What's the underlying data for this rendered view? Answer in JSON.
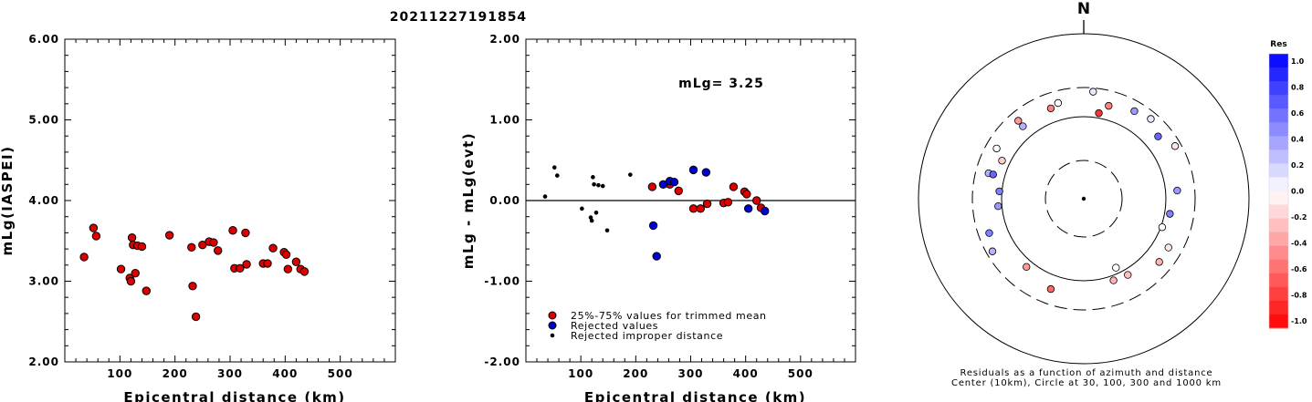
{
  "title": "20211227191854",
  "chart_data": [
    {
      "type": "scatter",
      "xlabel": "Epicentral distance (km)",
      "ylabel": "mLg(IASPEI)",
      "xlim": [
        0,
        600
      ],
      "ylim": [
        2.0,
        6.0
      ],
      "xticks": [
        "100",
        "200",
        "300",
        "400",
        "500"
      ],
      "yticks": [
        "2.00",
        "3.00",
        "4.00",
        "5.00",
        "6.00"
      ],
      "marker_color": "#dd0000",
      "points": [
        [
          35,
          3.3
        ],
        [
          52,
          3.66
        ],
        [
          57,
          3.56
        ],
        [
          102,
          3.15
        ],
        [
          118,
          3.04
        ],
        [
          120,
          3.0
        ],
        [
          122,
          3.54
        ],
        [
          124,
          3.45
        ],
        [
          128,
          3.1
        ],
        [
          132,
          3.44
        ],
        [
          140,
          3.43
        ],
        [
          148,
          2.88
        ],
        [
          190,
          3.57
        ],
        [
          230,
          3.42
        ],
        [
          232,
          2.94
        ],
        [
          238,
          2.56
        ],
        [
          250,
          3.45
        ],
        [
          262,
          3.49
        ],
        [
          270,
          3.48
        ],
        [
          278,
          3.38
        ],
        [
          305,
          3.63
        ],
        [
          308,
          3.16
        ],
        [
          318,
          3.16
        ],
        [
          328,
          3.6
        ],
        [
          330,
          3.21
        ],
        [
          360,
          3.22
        ],
        [
          368,
          3.22
        ],
        [
          378,
          3.41
        ],
        [
          398,
          3.36
        ],
        [
          402,
          3.33
        ],
        [
          405,
          3.15
        ],
        [
          420,
          3.24
        ],
        [
          428,
          3.15
        ],
        [
          435,
          3.12
        ]
      ]
    },
    {
      "type": "scatter",
      "xlabel": "Epicentral distance (km)",
      "ylabel": "mLg - mLg(evt)",
      "xlim": [
        0,
        600
      ],
      "ylim": [
        -2.0,
        2.0
      ],
      "xticks": [
        "100",
        "200",
        "300",
        "400",
        "500"
      ],
      "yticks": [
        "-2.00",
        "-1.00",
        "0.00",
        "1.00",
        "2.00"
      ],
      "annotation": "mLg= 3.25",
      "reference_line": 0,
      "legend": {
        "position": "bottom-left",
        "entries": [
          {
            "label": "25%-75% values for trimmed mean",
            "color": "#dd0000"
          },
          {
            "label": "Rejected values",
            "color": "#0000cc"
          },
          {
            "label": "Rejected improper distance",
            "color": "#000000"
          }
        ]
      },
      "series": [
        {
          "name": "25%-75% values for trimmed mean",
          "points": [
            [
              230,
              0.17
            ],
            [
              262,
              0.2
            ],
            [
              278,
              0.12
            ],
            [
              305,
              -0.1
            ],
            [
              318,
              -0.1
            ],
            [
              330,
              -0.04
            ],
            [
              360,
              -0.03
            ],
            [
              368,
              -0.02
            ],
            [
              378,
              0.17
            ],
            [
              398,
              0.11
            ],
            [
              402,
              0.08
            ],
            [
              420,
              0.0
            ],
            [
              428,
              -0.09
            ]
          ]
        },
        {
          "name": "Rejected values",
          "points": [
            [
              232,
              -0.31
            ],
            [
              238,
              -0.69
            ],
            [
              250,
              0.2
            ],
            [
              262,
              0.24
            ],
            [
              270,
              0.23
            ],
            [
              305,
              0.38
            ],
            [
              328,
              0.35
            ],
            [
              405,
              -0.1
            ],
            [
              435,
              -0.13
            ]
          ]
        },
        {
          "name": "Rejected improper distance",
          "points": [
            [
              35,
              0.05
            ],
            [
              52,
              0.41
            ],
            [
              57,
              0.31
            ],
            [
              102,
              -0.1
            ],
            [
              118,
              -0.21
            ],
            [
              120,
              -0.25
            ],
            [
              122,
              0.29
            ],
            [
              124,
              0.2
            ],
            [
              128,
              -0.15
            ],
            [
              132,
              0.19
            ],
            [
              140,
              0.18
            ],
            [
              148,
              -0.37
            ],
            [
              190,
              0.32
            ]
          ]
        }
      ]
    },
    {
      "type": "scatter",
      "subtype": "polar",
      "north_label": "N",
      "caption": [
        "Residuals as a function of azimuth and distance",
        "Center (10km), Circle at 30, 100, 300 and 1000 km"
      ],
      "colorbar": {
        "title": "Res",
        "ticks": [
          "1.0",
          "0.8",
          "0.6",
          "0.4",
          "0.2",
          "0.0",
          "-0.2",
          "-0.4",
          "-0.6",
          "-0.8",
          "-1.0"
        ]
      },
      "points": [
        [
          5,
          260,
          0.1
        ],
        [
          10,
          120,
          -0.8
        ],
        [
          30,
          205,
          0.4
        ],
        [
          40,
          230,
          0.1
        ],
        [
          50,
          175,
          0.6
        ],
        [
          60,
          240,
          -0.1
        ],
        [
          85,
          155,
          0.4
        ],
        [
          100,
          122,
          0.5
        ],
        [
          110,
          105,
          0.0
        ],
        [
          120,
          180,
          -0.1
        ],
        [
          130,
          185,
          -0.3
        ],
        [
          150,
          125,
          -0.25
        ],
        [
          155,
          85,
          0.0
        ],
        [
          160,
          120,
          -0.3
        ],
        [
          200,
          170,
          -0.6
        ],
        [
          220,
          130,
          -0.4
        ],
        [
          240,
          240,
          0.3
        ],
        [
          250,
          200,
          0.5
        ],
        [
          265,
          115,
          0.4
        ],
        [
          275,
          110,
          0.5
        ],
        [
          285,
          185,
          0.3
        ],
        [
          295,
          135,
          -0.2
        ],
        [
          300,
          200,
          0.0
        ],
        [
          320,
          160,
          0.3
        ],
        [
          320,
          210,
          -0.4
        ],
        [
          340,
          170,
          -0.5
        ],
        [
          345,
          190,
          0.0
        ],
        [
          15,
          170,
          -0.5
        ],
        [
          285,
          155,
          0.6
        ]
      ]
    }
  ]
}
